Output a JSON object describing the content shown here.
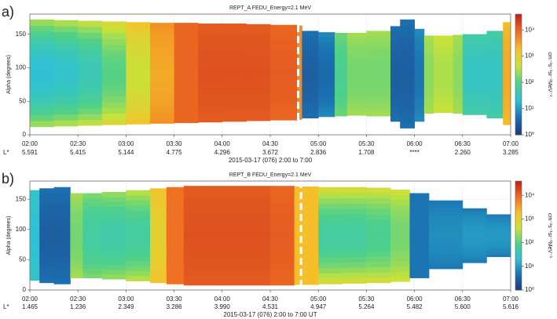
{
  "chart_data": [
    {
      "type": "heatmap",
      "panel_label": "a)",
      "title": "REPT_A FEDU_Energy=2.1 MeV",
      "ylabel": "Alpha (degrees)",
      "xlabel": "2015-03-17 (076) 2:00 to 7:00",
      "ylim": [
        0,
        180
      ],
      "yticks": [
        0,
        50,
        100,
        150
      ],
      "xlim": [
        2,
        7
      ],
      "xticks": [
        {
          "value": 2,
          "label": "02:00"
        },
        {
          "value": 2.5,
          "label": "02:30"
        },
        {
          "value": 3,
          "label": "03:00"
        },
        {
          "value": 3.5,
          "label": "03:30"
        },
        {
          "value": 4,
          "label": "04:00"
        },
        {
          "value": 4.5,
          "label": "04:30"
        },
        {
          "value": 5,
          "label": "05:00"
        },
        {
          "value": 5.5,
          "label": "05:30"
        },
        {
          "value": 6,
          "label": "06:00"
        },
        {
          "value": 6.5,
          "label": "06:30"
        },
        {
          "value": 7,
          "label": "07:00"
        }
      ],
      "lstar": {
        "label": "L*",
        "values": [
          "5.591",
          "5.415",
          "5.144",
          "4.775",
          "4.296",
          "3.672",
          "2.836",
          "1.708",
          "****",
          "2.260",
          "3.285"
        ]
      },
      "grid": true,
      "marker_x": 4.79,
      "bins": [
        2.0,
        2.25,
        2.5,
        2.75,
        3.0,
        3.25,
        3.5,
        3.75,
        4.0,
        4.25,
        4.5,
        4.78,
        4.83,
        5.0,
        5.17,
        5.3,
        5.5,
        5.75,
        5.85,
        6.0,
        6.1,
        6.2,
        6.4,
        6.5,
        6.75,
        6.92,
        7.0
      ],
      "flux_center": [
        20,
        25,
        40,
        100,
        500,
        3000,
        10000,
        15000,
        15000,
        15000,
        12000,
        5000,
        3,
        4,
        80,
        150,
        150,
        3,
        3,
        5,
        200,
        300,
        200,
        30,
        30,
        3000
      ],
      "flux_edge": [
        400,
        500,
        600,
        1000,
        2000,
        5000,
        10000,
        12000,
        12000,
        12000,
        10000,
        5000,
        5,
        8,
        150,
        300,
        300,
        5,
        5,
        8,
        300,
        500,
        300,
        60,
        60,
        2000
      ],
      "alpha_low": [
        12,
        13,
        14,
        15,
        16,
        17,
        18,
        19,
        20,
        21,
        22,
        23,
        25,
        27,
        28,
        29,
        28,
        20,
        10,
        20,
        32,
        33,
        32,
        30,
        25,
        15
      ],
      "alpha_high": [
        172,
        171,
        170,
        169,
        168,
        167,
        167,
        166,
        166,
        165,
        164,
        163,
        155,
        153,
        152,
        152,
        155,
        162,
        172,
        158,
        148,
        148,
        149,
        150,
        155,
        168
      ],
      "clim": [
        1,
        40000
      ],
      "cscale": "log",
      "cticks": [
        {
          "value": 1,
          "label": "10⁰"
        },
        {
          "value": 10,
          "label": "10¹"
        },
        {
          "value": 100,
          "label": "10²"
        },
        {
          "value": 1000,
          "label": "10³"
        },
        {
          "value": 10000,
          "label": "10⁴"
        }
      ],
      "clabel": "cm⁻²s⁻¹sr⁻¹MeV⁻¹",
      "colormap": [
        "#22367a",
        "#1b6fb0",
        "#2fc1d4",
        "#4fd08a",
        "#c8e23a",
        "#f6c12a",
        "#ef6d22",
        "#c1211b"
      ]
    },
    {
      "type": "heatmap",
      "panel_label": "b)",
      "title": "REPT_B FEDU_Energy=2.1 MeV",
      "ylabel": "Alpha (degrees)",
      "xlabel": "2015-03-17 (076) 2:00 to 7:00 UT",
      "ylim": [
        0,
        180
      ],
      "yticks": [
        0,
        50,
        100,
        150
      ],
      "xlim": [
        2,
        7
      ],
      "xticks": [
        {
          "value": 2,
          "label": "02:00"
        },
        {
          "value": 2.5,
          "label": "02:30"
        },
        {
          "value": 3,
          "label": "03:00"
        },
        {
          "value": 3.5,
          "label": "03:30"
        },
        {
          "value": 4,
          "label": "04:00"
        },
        {
          "value": 4.5,
          "label": "04:30"
        },
        {
          "value": 5,
          "label": "05:00"
        },
        {
          "value": 5.5,
          "label": "05:30"
        },
        {
          "value": 6,
          "label": "06:00"
        },
        {
          "value": 6.5,
          "label": "06:30"
        },
        {
          "value": 7,
          "label": "07:00"
        }
      ],
      "lstar": {
        "label": "L*",
        "values": [
          "1.465",
          "1.236",
          "2.349",
          "3.286",
          "3.990",
          "4.531",
          "4.947",
          "5.264",
          "5.482",
          "5.600",
          "5.616"
        ]
      },
      "grid": true,
      "marker_x": 4.82,
      "bins": [
        2.0,
        2.1,
        2.25,
        2.42,
        2.55,
        2.75,
        3.0,
        3.25,
        3.42,
        3.6,
        3.8,
        4.0,
        4.25,
        4.5,
        4.75,
        5.0,
        5.25,
        5.5,
        5.75,
        5.95,
        6.15,
        6.5,
        6.75,
        7.0
      ],
      "flux_center": [
        20,
        3,
        3,
        150,
        60,
        50,
        60,
        1000,
        8000,
        15000,
        15000,
        15000,
        15000,
        12000,
        2000,
        60,
        60,
        80,
        150,
        5,
        8,
        10,
        10
      ],
      "flux_edge": [
        30,
        5,
        5,
        300,
        200,
        300,
        500,
        2000,
        8000,
        12000,
        12000,
        12000,
        12000,
        10000,
        2000,
        1000,
        1000,
        800,
        600,
        5,
        5,
        5,
        5
      ],
      "alpha_low": [
        16,
        12,
        10,
        20,
        20,
        18,
        15,
        12,
        10,
        8,
        8,
        8,
        8,
        8,
        9,
        10,
        11,
        12,
        14,
        20,
        35,
        45,
        55
      ],
      "alpha_high": [
        165,
        168,
        170,
        160,
        160,
        162,
        165,
        168,
        170,
        172,
        172,
        172,
        172,
        172,
        171,
        170,
        170,
        169,
        166,
        160,
        148,
        135,
        125
      ],
      "clim": [
        1,
        40000
      ],
      "cscale": "log",
      "cticks": [
        {
          "value": 1,
          "label": "10⁰"
        },
        {
          "value": 10,
          "label": "10¹"
        },
        {
          "value": 100,
          "label": "10²"
        },
        {
          "value": 1000,
          "label": "10³"
        },
        {
          "value": 10000,
          "label": "10⁴"
        }
      ],
      "clabel": "cm⁻²s⁻¹sr⁻¹MeV⁻¹",
      "colormap": [
        "#22367a",
        "#1b6fb0",
        "#2fc1d4",
        "#4fd08a",
        "#c8e23a",
        "#f6c12a",
        "#ef6d22",
        "#c1211b"
      ]
    }
  ]
}
